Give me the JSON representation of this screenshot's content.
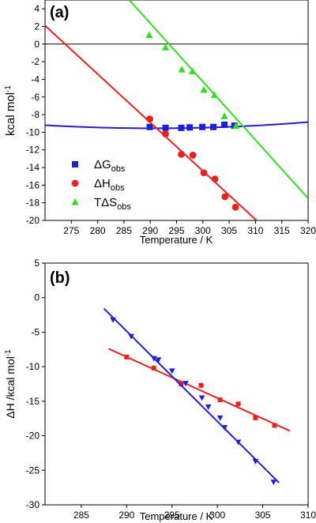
{
  "chart_data": [
    {
      "panel_label": "(a)",
      "type": "scatter",
      "xlabel": "Temperature / K",
      "ylabel_main": "kcal mol",
      "ylabel_sup": "-1",
      "xlim": [
        270,
        320
      ],
      "ylim": [
        -20,
        5
      ],
      "xticks": [
        275,
        280,
        285,
        290,
        295,
        300,
        305,
        310,
        315,
        320
      ],
      "yticks": [
        4,
        2,
        0,
        -2,
        -4,
        -6,
        -8,
        -10,
        -12,
        -14,
        -16,
        -18,
        -20
      ],
      "zero_line": true,
      "legend_position": "lower-left",
      "series": [
        {
          "name": "ΔG",
          "name_sub": "obs",
          "marker": "square",
          "color": "#1f1fd8",
          "points": [
            [
              289.9,
              -9.4
            ],
            [
              292.9,
              -9.5
            ],
            [
              295.9,
              -9.5
            ],
            [
              297.5,
              -9.45
            ],
            [
              299.9,
              -9.4
            ],
            [
              302.0,
              -9.4
            ],
            [
              304.1,
              -9.15
            ],
            [
              306.0,
              -9.25
            ]
          ],
          "fit": {
            "kind": "quadratic",
            "x": [
              270,
              292,
              320
            ],
            "y": [
              -9.2,
              -9.55,
              -8.85
            ]
          }
        },
        {
          "name": "ΔH",
          "name_sub": "obs",
          "marker": "circle",
          "color": "#e8231f",
          "points": [
            [
              289.9,
              -8.5
            ],
            [
              292.9,
              -10.2
            ],
            [
              295.9,
              -12.5
            ],
            [
              298.1,
              -12.6
            ],
            [
              300.2,
              -14.6
            ],
            [
              302.3,
              -15.3
            ],
            [
              304.2,
              -17.3
            ],
            [
              306.2,
              -18.5
            ]
          ],
          "fit": {
            "kind": "line",
            "x": [
              270,
              310.2
            ],
            "y": [
              2.1,
              -20
            ]
          }
        },
        {
          "name": "TΔS",
          "name_sub": "obs",
          "marker": "triangle",
          "color": "#33dd22",
          "points": [
            [
              289.8,
              1.0
            ],
            [
              292.9,
              -0.4
            ],
            [
              296.0,
              -2.9
            ],
            [
              298.0,
              -3.1
            ],
            [
              300.2,
              -5.2
            ],
            [
              302.2,
              -5.8
            ],
            [
              304.1,
              -8.2
            ],
            [
              306.3,
              -9.3
            ]
          ],
          "fit": {
            "kind": "line",
            "x": [
              286,
              320
            ],
            "y": [
              5,
              -17.5
            ]
          }
        }
      ]
    },
    {
      "panel_label": "(b)",
      "type": "scatter",
      "xlabel": "Temperature / K",
      "ylabel_main": "ΔH /kcal mol",
      "ylabel_sup": "-1",
      "xlim": [
        281,
        310
      ],
      "ylim": [
        -30,
        5
      ],
      "xticks": [
        285,
        290,
        295,
        300,
        305,
        310
      ],
      "yticks": [
        5,
        0,
        -5,
        -10,
        -15,
        -20,
        -25,
        -30
      ],
      "series": [
        {
          "marker": "circle-square",
          "color": "#e8231f",
          "points": [
            [
              290.0,
              -8.6
            ],
            [
              293.0,
              -10.2
            ],
            [
              296.0,
              -12.5
            ],
            [
              298.2,
              -12.7
            ],
            [
              300.3,
              -14.8
            ],
            [
              302.3,
              -15.4
            ],
            [
              304.2,
              -17.4
            ],
            [
              306.3,
              -18.5
            ]
          ],
          "fit": {
            "kind": "line",
            "x": [
              288,
              308
            ],
            "y": [
              -7.4,
              -19.3
            ]
          }
        },
        {
          "marker": "triangle-down",
          "color": "#1f1fd8",
          "points": [
            [
              288.5,
              -3.2
            ],
            [
              290.5,
              -5.6
            ],
            [
              293.0,
              -8.8
            ],
            [
              293.5,
              -9.0
            ],
            [
              295.0,
              -10.6
            ],
            [
              296.5,
              -12.4
            ],
            [
              298.3,
              -14.5
            ],
            [
              299.0,
              -15.8
            ],
            [
              300.3,
              -17.4
            ],
            [
              300.8,
              -18.8
            ],
            [
              302.3,
              -20.9
            ],
            [
              304.2,
              -23.7
            ],
            [
              306.2,
              -26.7
            ]
          ],
          "fit": {
            "kind": "line",
            "x": [
              287.5,
              306.8
            ],
            "y": [
              -1.6,
              -26.8
            ]
          }
        }
      ]
    }
  ]
}
